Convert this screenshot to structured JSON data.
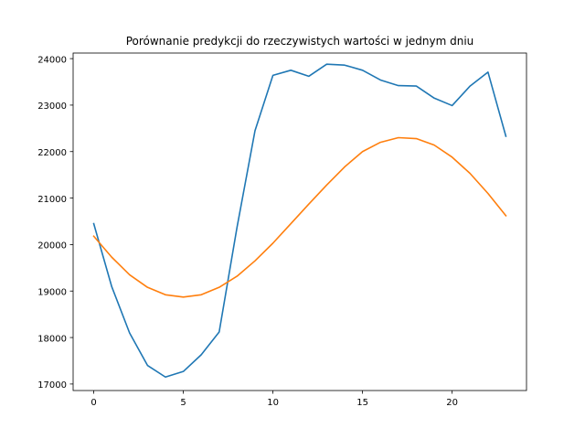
{
  "chart_data": {
    "type": "line",
    "title": "Porównanie predykcji do rzeczywistych wartości w jednym dniu",
    "xlabel": "",
    "ylabel": "",
    "x": [
      0,
      1,
      2,
      3,
      4,
      5,
      6,
      7,
      8,
      9,
      10,
      11,
      12,
      13,
      14,
      15,
      16,
      17,
      18,
      19,
      20,
      21,
      22,
      23
    ],
    "xlim": [
      -1.15,
      24.15
    ],
    "ylim": [
      16860,
      24120
    ],
    "xticks": [
      0,
      5,
      10,
      15,
      20
    ],
    "yticks": [
      17000,
      18000,
      19000,
      20000,
      21000,
      22000,
      23000,
      24000
    ],
    "grid": false,
    "series": [
      {
        "color": "#1f77b4",
        "values": [
          20450,
          19100,
          18100,
          17400,
          17150,
          17270,
          17630,
          18120,
          20380,
          22450,
          23640,
          23750,
          23620,
          23880,
          23860,
          23750,
          23540,
          23420,
          23410,
          23150,
          22990,
          23410,
          23710,
          22330
        ]
      },
      {
        "color": "#ff7f0e",
        "values": [
          20180,
          19730,
          19350,
          19080,
          18920,
          18870,
          18920,
          19080,
          19320,
          19650,
          20030,
          20450,
          20870,
          21280,
          21670,
          22000,
          22200,
          22300,
          22280,
          22140,
          21880,
          21530,
          21100,
          20620
        ]
      }
    ]
  }
}
